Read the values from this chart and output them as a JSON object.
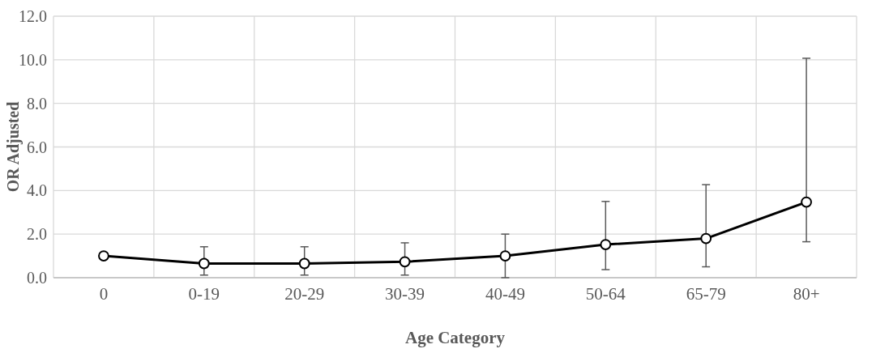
{
  "chart_data": {
    "type": "line",
    "xlabel": "Age Category",
    "ylabel": "OR Adjusted",
    "categories": [
      "0",
      "0-19",
      "20-29",
      "30-39",
      "40-49",
      "50-64",
      "65-79",
      "80+"
    ],
    "series": [
      {
        "color": "#000000",
        "values": [
          1.0,
          0.65,
          0.65,
          0.73,
          1.0,
          1.52,
          1.8,
          3.47
        ],
        "errors": [
          null,
          [
            0.12,
            1.42
          ],
          [
            0.12,
            1.42
          ],
          [
            0.12,
            1.6
          ],
          [
            0,
            2.0
          ],
          [
            0.37,
            3.5
          ],
          [
            0.5,
            4.27
          ],
          [
            1.65,
            10.07
          ]
        ]
      }
    ],
    "ylim": [
      0,
      12
    ],
    "yticks": [
      {
        "value": 0,
        "label": "0.0"
      },
      {
        "value": 2,
        "label": "2.0"
      },
      {
        "value": 4,
        "label": "4.0"
      },
      {
        "value": 6,
        "label": "6.0"
      },
      {
        "value": 8,
        "label": "8.0"
      },
      {
        "value": 10,
        "label": "10.0"
      },
      {
        "value": 12,
        "label": "12.0"
      }
    ],
    "grid": true,
    "marker": "circle",
    "line_style": "solid"
  }
}
